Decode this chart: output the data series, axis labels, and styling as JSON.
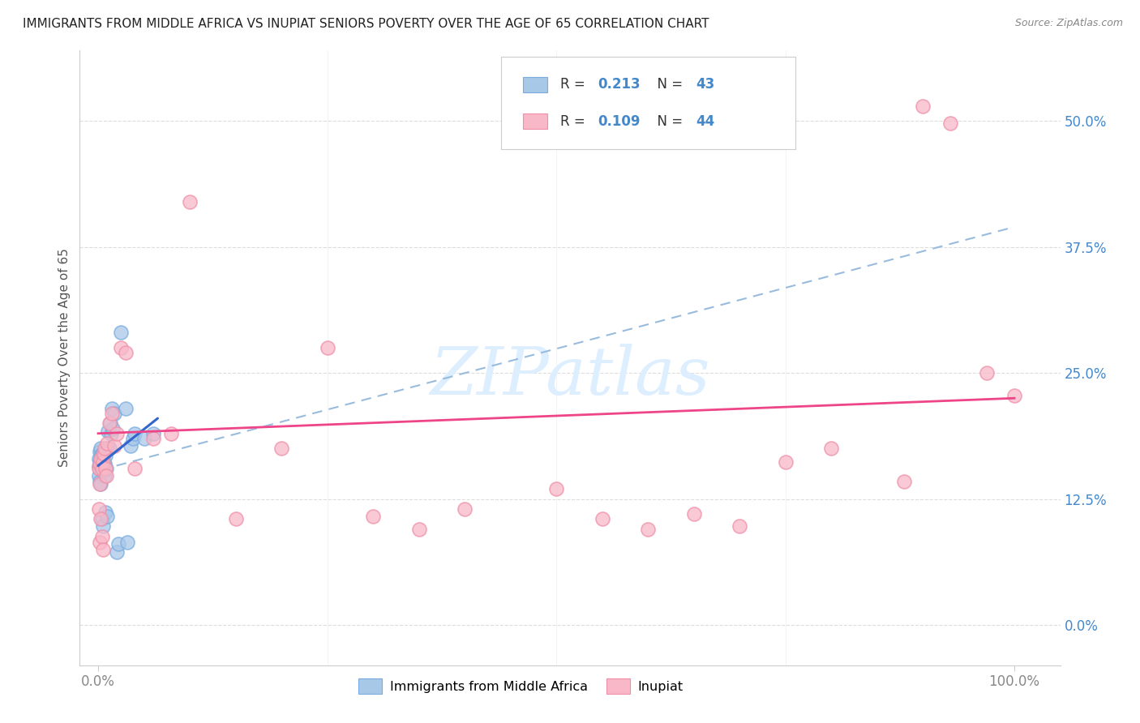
{
  "title": "IMMIGRANTS FROM MIDDLE AFRICA VS INUPIAT SENIORS POVERTY OVER THE AGE OF 65 CORRELATION CHART",
  "source": "Source: ZipAtlas.com",
  "ylabel": "Seniors Poverty Over the Age of 65",
  "R_blue": 0.213,
  "N_blue": 43,
  "R_pink": 0.109,
  "N_pink": 44,
  "xlim": [
    -0.02,
    1.05
  ],
  "ylim": [
    -0.04,
    0.57
  ],
  "xtick_positions": [
    0.0,
    1.0
  ],
  "xtick_labels": [
    "0.0%",
    "100.0%"
  ],
  "ytick_positions": [
    0.0,
    0.125,
    0.25,
    0.375,
    0.5
  ],
  "ytick_labels": [
    "0.0%",
    "12.5%",
    "25.0%",
    "37.5%",
    "50.0%"
  ],
  "background_color": "#ffffff",
  "grid_color": "#dddddd",
  "blue_dot_color": "#a8c8e8",
  "blue_dot_edge": "#7aace0",
  "pink_dot_color": "#f8b8c8",
  "pink_dot_edge": "#f090a8",
  "blue_line_color": "#3366cc",
  "pink_line_color": "#ee4488",
  "dashed_line_color": "#99bbdd",
  "title_color": "#222222",
  "source_color": "#888888",
  "watermark_color": "#ddeeff",
  "tick_color": "#4488cc",
  "xtick_color": "#888888",
  "blue_scatter_x": [
    0.001,
    0.001,
    0.001,
    0.002,
    0.002,
    0.002,
    0.002,
    0.003,
    0.003,
    0.003,
    0.003,
    0.004,
    0.004,
    0.004,
    0.005,
    0.005,
    0.005,
    0.006,
    0.006,
    0.007,
    0.007,
    0.008,
    0.008,
    0.009,
    0.01,
    0.01,
    0.011,
    0.012,
    0.013,
    0.014,
    0.015,
    0.016,
    0.018,
    0.02,
    0.022,
    0.025,
    0.03,
    0.032,
    0.035,
    0.038,
    0.04,
    0.05,
    0.06
  ],
  "blue_scatter_y": [
    0.165,
    0.158,
    0.148,
    0.172,
    0.162,
    0.155,
    0.142,
    0.175,
    0.168,
    0.158,
    0.14,
    0.17,
    0.162,
    0.105,
    0.168,
    0.158,
    0.098,
    0.162,
    0.152,
    0.16,
    0.148,
    0.168,
    0.112,
    0.155,
    0.175,
    0.108,
    0.192,
    0.175,
    0.2,
    0.19,
    0.215,
    0.195,
    0.21,
    0.072,
    0.08,
    0.29,
    0.215,
    0.082,
    0.178,
    0.185,
    0.19,
    0.185,
    0.19
  ],
  "pink_scatter_x": [
    0.001,
    0.001,
    0.002,
    0.002,
    0.002,
    0.003,
    0.003,
    0.004,
    0.004,
    0.005,
    0.005,
    0.006,
    0.007,
    0.008,
    0.009,
    0.01,
    0.012,
    0.015,
    0.018,
    0.02,
    0.025,
    0.03,
    0.04,
    0.06,
    0.08,
    0.1,
    0.15,
    0.2,
    0.25,
    0.3,
    0.35,
    0.4,
    0.5,
    0.55,
    0.6,
    0.65,
    0.7,
    0.75,
    0.8,
    0.88,
    0.9,
    0.93,
    0.97,
    1.0
  ],
  "pink_scatter_y": [
    0.155,
    0.115,
    0.16,
    0.14,
    0.082,
    0.165,
    0.105,
    0.155,
    0.088,
    0.162,
    0.075,
    0.17,
    0.175,
    0.155,
    0.148,
    0.18,
    0.2,
    0.21,
    0.178,
    0.19,
    0.275,
    0.27,
    0.155,
    0.185,
    0.19,
    0.42,
    0.105,
    0.175,
    0.275,
    0.108,
    0.095,
    0.115,
    0.135,
    0.105,
    0.095,
    0.11,
    0.098,
    0.162,
    0.175,
    0.142,
    0.515,
    0.498,
    0.25,
    0.228
  ],
  "blue_line_x": [
    0.0,
    0.065
  ],
  "blue_line_y": [
    0.158,
    0.205
  ],
  "pink_line_x": [
    0.0,
    1.0
  ],
  "pink_line_y": [
    0.19,
    0.225
  ],
  "dashed_line_x": [
    0.02,
    1.0
  ],
  "dashed_line_y": [
    0.158,
    0.395
  ]
}
